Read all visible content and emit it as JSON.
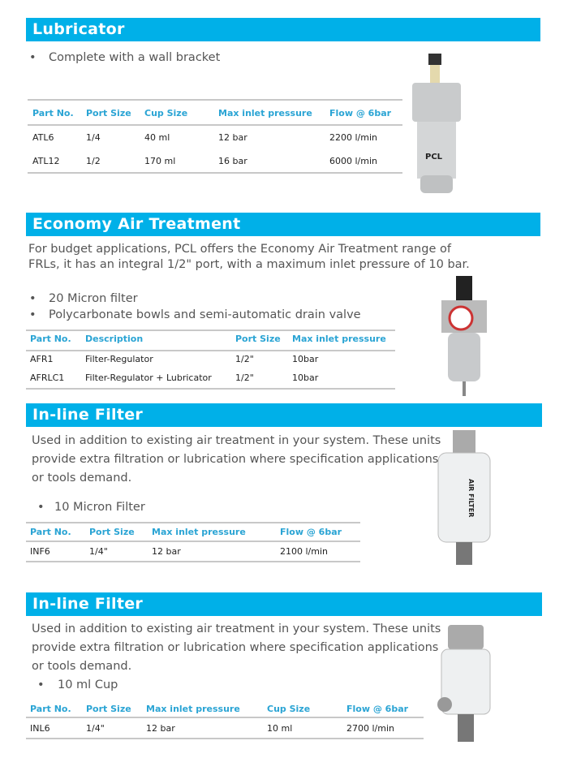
{
  "sections": [
    {
      "title": "Lubricator",
      "bullets": [
        "Complete with a wall bracket"
      ],
      "headers": [
        "Part No.",
        "Port Size",
        "Cup Size",
        "Max inlet pressure",
        "Flow @ 6bar"
      ],
      "rows": [
        [
          "ATL6",
          "1/4",
          "40 ml",
          "12 bar",
          "2200 l/min"
        ],
        [
          "ATL12",
          "1/2",
          "170 ml",
          "16 bar",
          "6000 l/min"
        ]
      ],
      "image_label": "PCL"
    },
    {
      "title": "Economy Air Treatment",
      "paragraph": [
        "For budget applications, PCL offers the Economy Air Treatment range of",
        "FRLs, it has an integral 1/2\" port, with a maximum inlet pressure of 10 bar."
      ],
      "bullets": [
        "20 Micron filter",
        "Polycarbonate bowls and semi-automatic drain valve"
      ],
      "headers": [
        "Part No.",
        "Description",
        "Port Size",
        "Max inlet pressure"
      ],
      "rows": [
        [
          "AFR1",
          "Filter-Regulator",
          "1/2\"",
          "10bar"
        ],
        [
          "AFRLC1",
          "Filter-Regulator + Lubricator",
          "1/2\"",
          "10bar"
        ]
      ]
    },
    {
      "title": "In-line Filter",
      "paragraph": [
        "Used in addition to existing air treatment in your system. These units",
        "provide extra filtration or lubrication where specification applications",
        "or tools demand."
      ],
      "bullets": [
        "10 Micron Filter"
      ],
      "headers": [
        "Part No.",
        "Port Size",
        "Max inlet pressure",
        "Flow @ 6bar"
      ],
      "rows": [
        [
          "INF6",
          "1/4\"",
          "12 bar",
          "2100 l/min"
        ]
      ],
      "image_label": "AIR FILTER"
    },
    {
      "title": "In-line Filter",
      "paragraph": [
        "Used in addition to existing air treatment in your system. These units",
        "provide extra filtration or lubrication where specification applications",
        "or tools demand."
      ],
      "bullets": [
        "10 ml Cup"
      ],
      "headers": [
        "Part No.",
        "Port Size",
        "Max inlet pressure",
        "Cup Size",
        "Flow @ 6bar"
      ],
      "rows": [
        [
          "INL6",
          "1/4\"",
          "12 bar",
          "10 ml",
          "2700 l/min"
        ]
      ]
    }
  ],
  "colors": {
    "header_bar": "#00b0e8",
    "table_header": "#2aa4d4"
  }
}
